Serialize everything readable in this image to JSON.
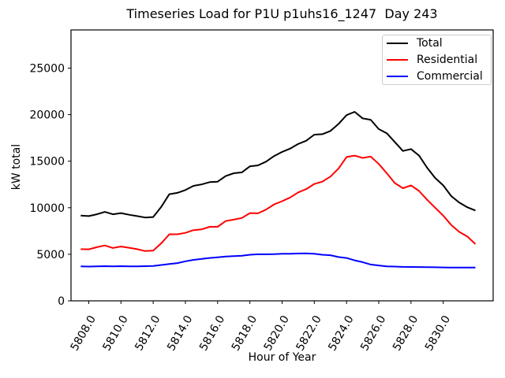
{
  "chart_data": {
    "type": "line",
    "title": "Timeseries Load for P1U p1uhs16_1247  Day 243",
    "xlabel": "Hour of Year",
    "ylabel": "kW total",
    "grid": false,
    "background": "#ffffff",
    "spine_color": "#000000",
    "legend": {
      "position": "upper right",
      "border_color": "#cccccc"
    },
    "xlim": [
      5806.9,
      5833.1
    ],
    "ylim": [
      0,
      29100
    ],
    "x_ticks": {
      "values": [
        5808,
        5810,
        5812,
        5814,
        5816,
        5818,
        5820,
        5822,
        5824,
        5826,
        5828,
        5830
      ],
      "labels": [
        "5808.0",
        "5810.0",
        "5812.0",
        "5814.0",
        "5816.0",
        "5818.0",
        "5820.0",
        "5822.0",
        "5824.0",
        "5826.0",
        "5828.0",
        "5830.0"
      ],
      "rotation_deg": 60
    },
    "y_ticks": {
      "values": [
        0,
        5000,
        10000,
        15000,
        20000,
        25000
      ],
      "labels": [
        "0",
        "5000",
        "10000",
        "15000",
        "20000",
        "25000"
      ]
    },
    "x": [
      5807.5,
      5808,
      5808.5,
      5809,
      5809.5,
      5810,
      5810.5,
      5811,
      5811.5,
      5812,
      5812.5,
      5813,
      5813.5,
      5814,
      5814.5,
      5815,
      5815.5,
      5816,
      5816.5,
      5817,
      5817.5,
      5818,
      5818.5,
      5819,
      5819.5,
      5820,
      5820.5,
      5821,
      5821.5,
      5822,
      5822.5,
      5823,
      5823.5,
      5824,
      5824.5,
      5825,
      5825.5,
      5826,
      5826.5,
      5827,
      5827.5,
      5828,
      5828.5,
      5829,
      5829.5,
      5830,
      5830.5,
      5831,
      5831.5,
      5832
    ],
    "series": [
      {
        "name": "Total",
        "color": "#000000",
        "values": [
          9150,
          9100,
          9300,
          9550,
          9300,
          9420,
          9250,
          9100,
          8950,
          9000,
          10100,
          11450,
          11600,
          11900,
          12350,
          12500,
          12750,
          12800,
          13400,
          13700,
          13800,
          14450,
          14550,
          14950,
          15550,
          16000,
          16350,
          16850,
          17200,
          17850,
          17900,
          18250,
          19000,
          19950,
          20300,
          19600,
          19450,
          18450,
          18000,
          17050,
          16100,
          16300,
          15600,
          14300,
          13200,
          12400,
          11250,
          10550,
          10050,
          9700
        ]
      },
      {
        "name": "Residential",
        "color": "#ff0000",
        "values": [
          5550,
          5530,
          5760,
          5950,
          5680,
          5840,
          5700,
          5550,
          5350,
          5390,
          6180,
          7150,
          7150,
          7300,
          7600,
          7670,
          7950,
          7950,
          8570,
          8720,
          8900,
          9420,
          9400,
          9800,
          10350,
          10700,
          11100,
          11650,
          12000,
          12550,
          12800,
          13350,
          14200,
          15450,
          15600,
          15350,
          15500,
          14700,
          13700,
          12650,
          12100,
          12400,
          11800,
          10850,
          10000,
          9150,
          8150,
          7400,
          6900,
          6100
        ]
      },
      {
        "name": "Commercial",
        "color": "#0000ff",
        "values": [
          3700,
          3680,
          3700,
          3720,
          3700,
          3720,
          3700,
          3700,
          3720,
          3750,
          3850,
          3950,
          4050,
          4250,
          4400,
          4500,
          4600,
          4680,
          4750,
          4800,
          4850,
          4950,
          5000,
          5000,
          5020,
          5050,
          5050,
          5080,
          5100,
          5050,
          4950,
          4900,
          4700,
          4600,
          4350,
          4150,
          3900,
          3800,
          3700,
          3680,
          3650,
          3640,
          3630,
          3620,
          3600,
          3590,
          3580,
          3570,
          3570,
          3580
        ]
      }
    ]
  }
}
